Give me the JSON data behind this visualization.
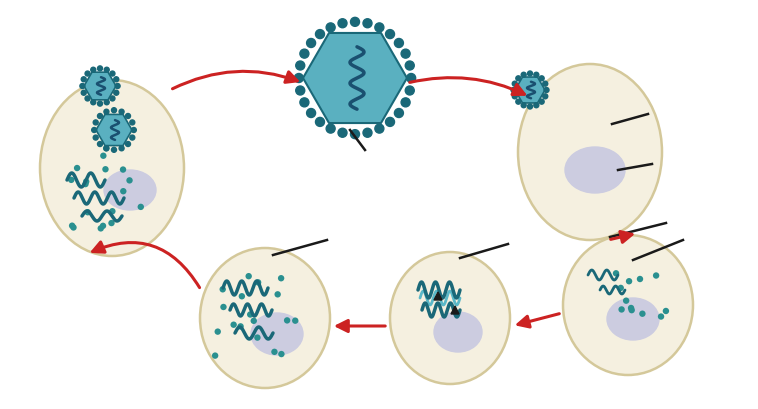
{
  "bg_color": "#ffffff",
  "cell_color": "#f5f0e0",
  "cell_border": "#d4c89a",
  "nucleus_color": "#cccce0",
  "teal_dark": "#1a6878",
  "teal_mid": "#3a8898",
  "teal_body": "#5ab0c0",
  "teal_light": "#7fd0d8",
  "teal_dots": "#2a9090",
  "arrow_color": "#cc2222",
  "line_color": "#1a1a1a",
  "rna_dark": "#1a6878",
  "rna_light": "#5ab8c8"
}
